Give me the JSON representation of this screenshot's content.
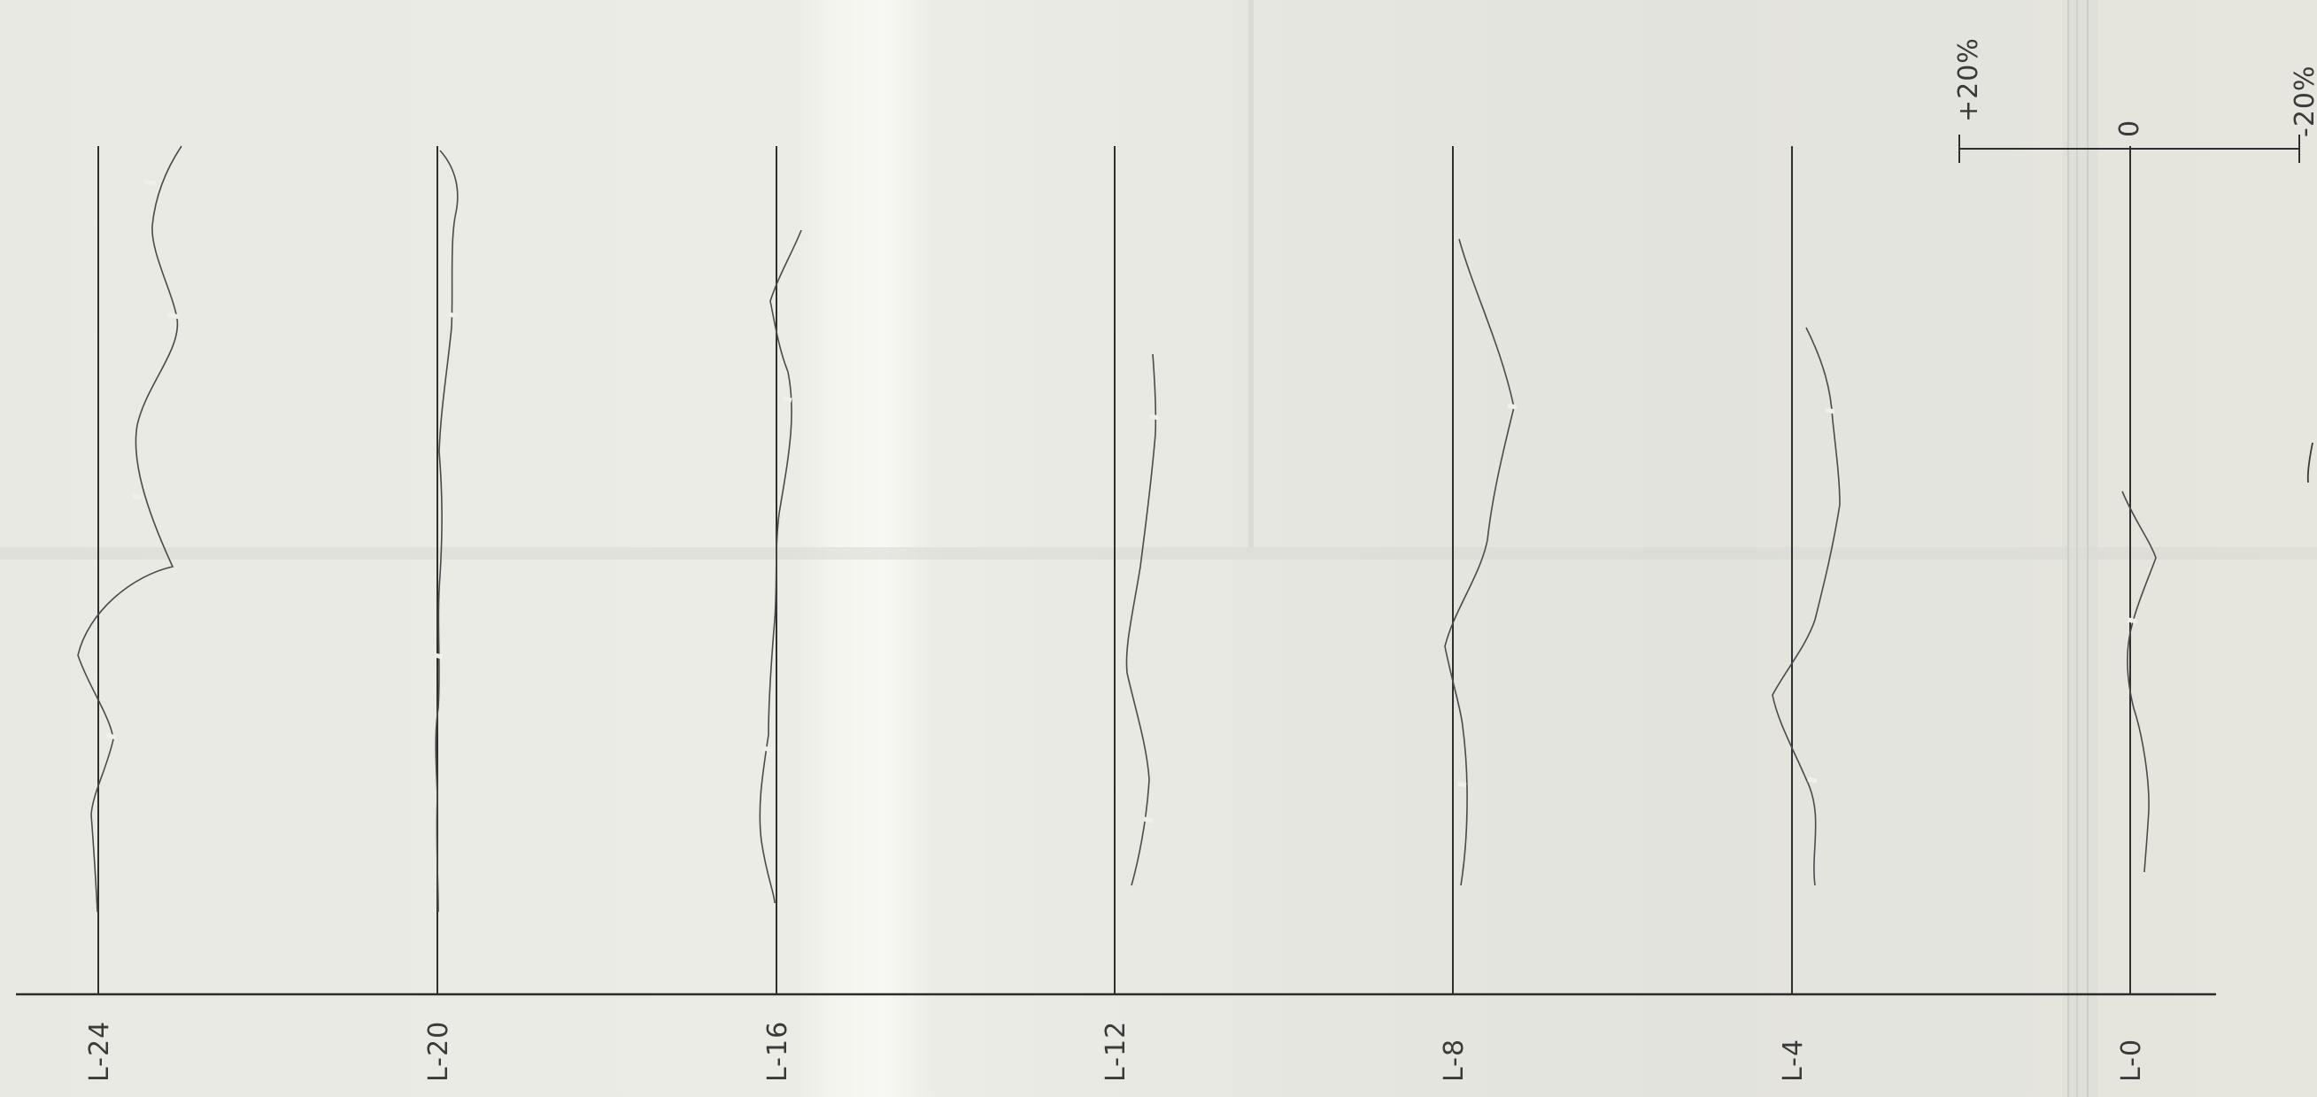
{
  "stations": [
    {
      "id": "l-24",
      "label": "L-24"
    },
    {
      "id": "l-20",
      "label": "L-20"
    },
    {
      "id": "l-16",
      "label": "L-16"
    },
    {
      "id": "l-12",
      "label": "L-12"
    },
    {
      "id": "l-8",
      "label": "L-8"
    },
    {
      "id": "l-4",
      "label": "L-4"
    },
    {
      "id": "l-0",
      "label": "L-0"
    }
  ],
  "scale": {
    "plus_label": "+20%",
    "zero_label": "0",
    "minus_label": "-20%"
  }
}
